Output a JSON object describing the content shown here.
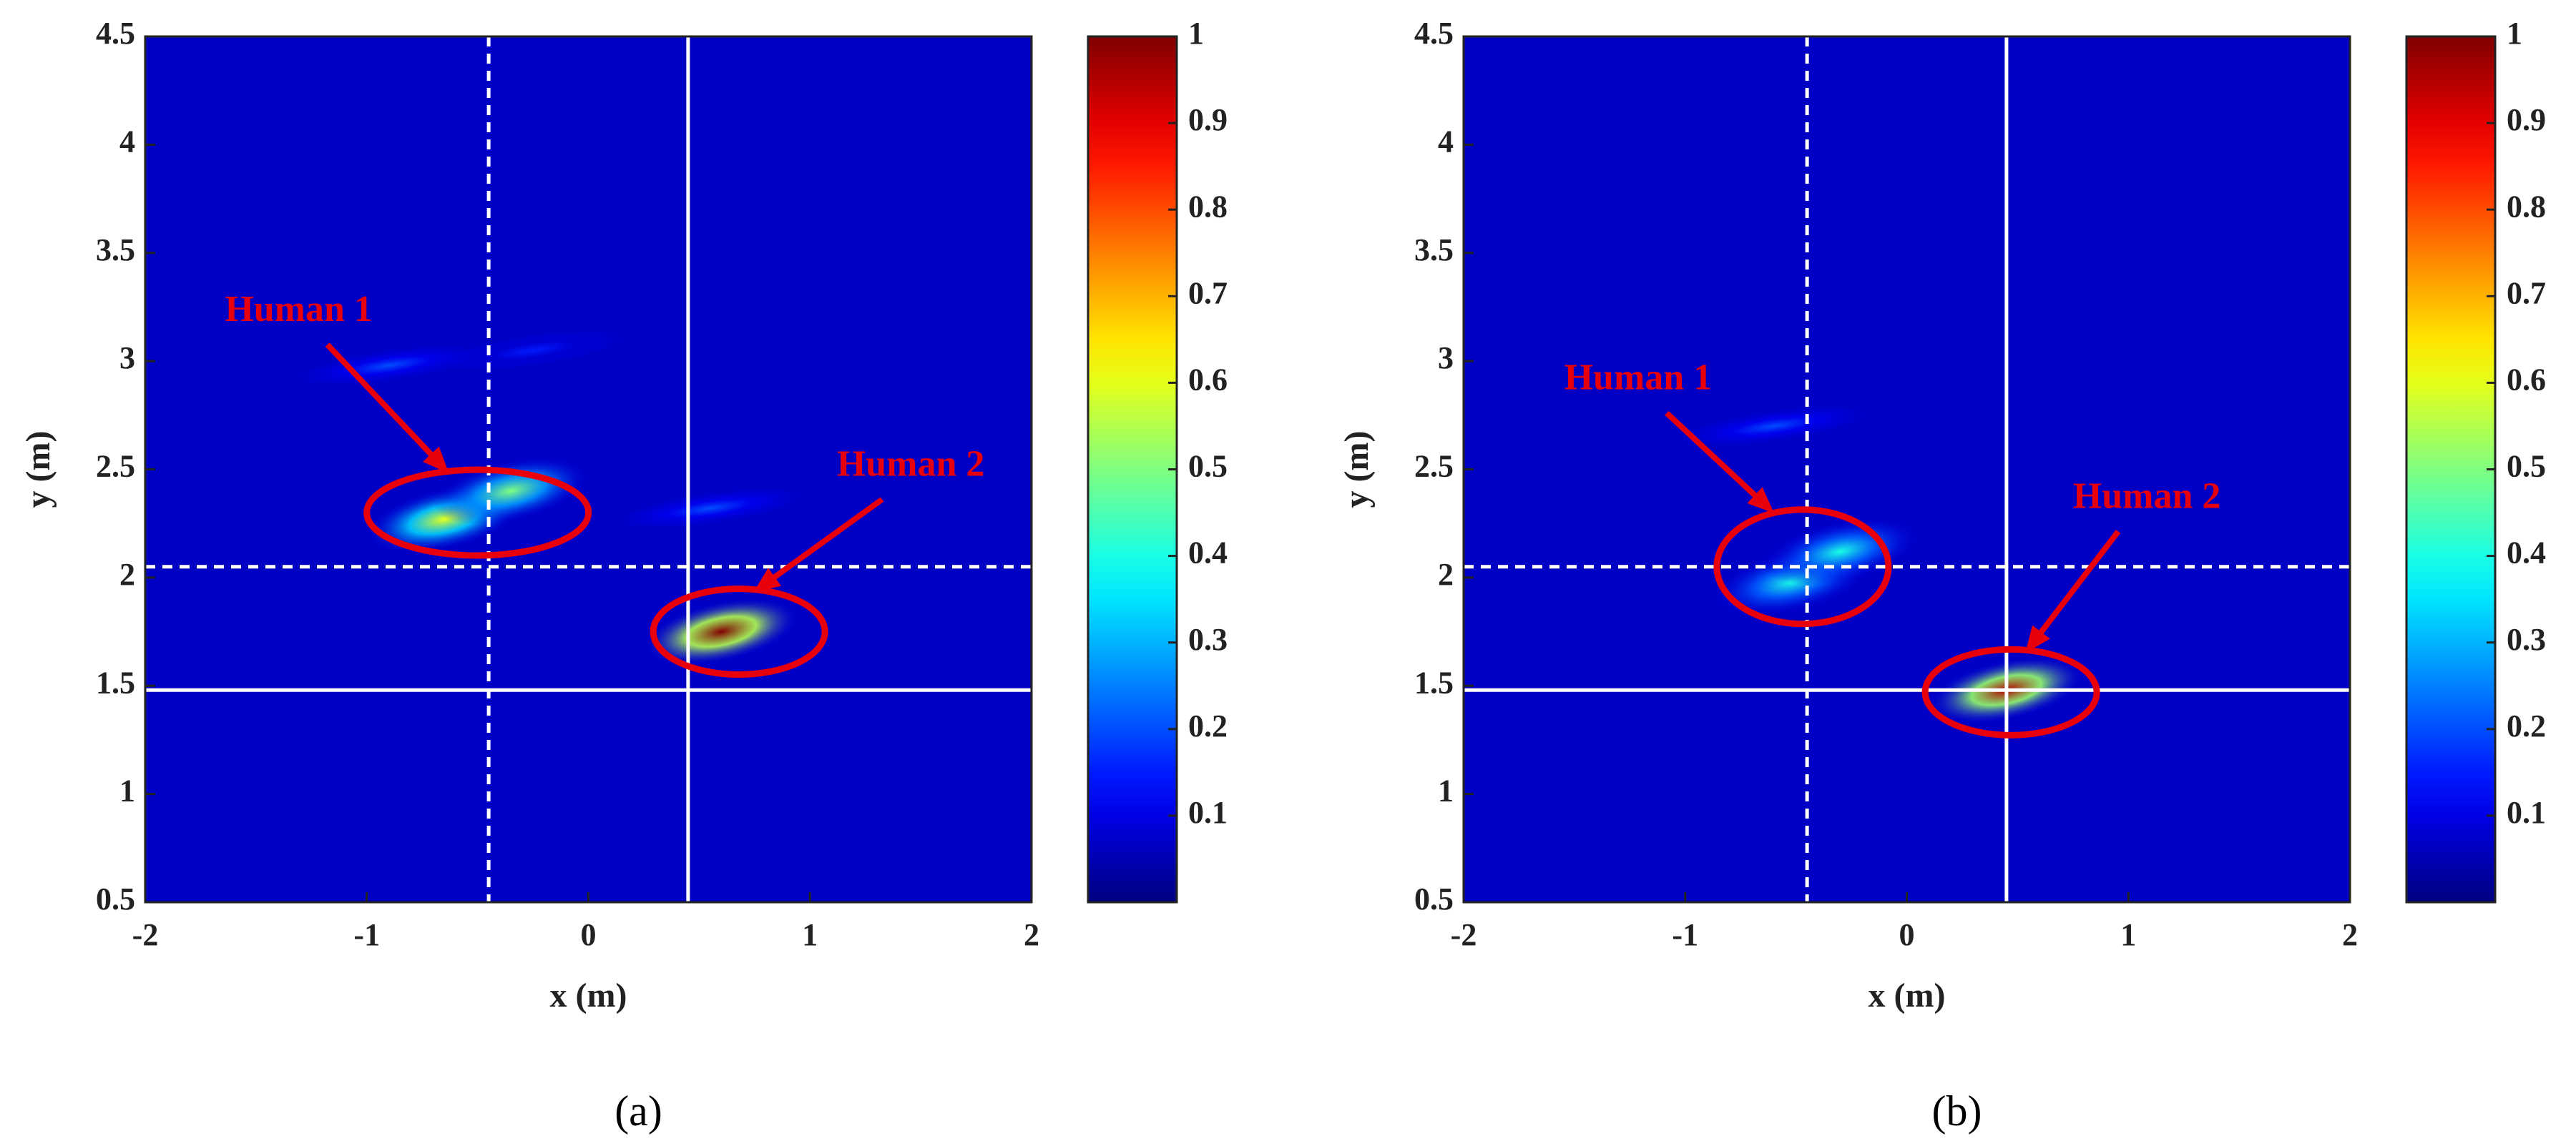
{
  "chart_data": [
    {
      "type": "heatmap",
      "caption": "(a)",
      "xlabel": "x (m)",
      "ylabel": "y (m)",
      "xlim": [
        -2,
        2
      ],
      "ylim": [
        0.5,
        4.5
      ],
      "xticks": [
        -2,
        -1,
        0,
        1,
        2
      ],
      "yticks": [
        0.5,
        1,
        1.5,
        2,
        2.5,
        3,
        3.5,
        4,
        4.5
      ],
      "clim": [
        0,
        1
      ],
      "cticks": [
        0.1,
        0.2,
        0.3,
        0.4,
        0.5,
        0.6,
        0.7,
        0.8,
        0.9,
        1
      ],
      "colormap": "jet",
      "background_value": 0.08,
      "hotspots": [
        {
          "x": -0.65,
          "y": 2.27,
          "value": 0.6
        },
        {
          "x": -0.35,
          "y": 2.4,
          "value": 0.5
        },
        {
          "x": -0.9,
          "y": 2.98,
          "value": 0.2
        },
        {
          "x": -0.25,
          "y": 3.05,
          "value": 0.15
        },
        {
          "x": 0.55,
          "y": 2.32,
          "value": 0.2
        },
        {
          "x": 0.6,
          "y": 1.75,
          "value": 1.0
        }
      ],
      "lines": [
        {
          "x": -0.45,
          "y": 2.05,
          "style": "dashed"
        },
        {
          "x": 0.45,
          "y": 1.48,
          "style": "solid"
        }
      ],
      "targets": [
        {
          "label": "Human 1",
          "x": -0.5,
          "y": 2.3
        },
        {
          "label": "Human 2",
          "x": 0.68,
          "y": 1.75
        }
      ]
    },
    {
      "type": "heatmap",
      "caption": "(b)",
      "xlabel": "x (m)",
      "ylabel": "y (m)",
      "xlim": [
        -2,
        2
      ],
      "ylim": [
        0.5,
        4.5
      ],
      "xticks": [
        -2,
        -1,
        0,
        1,
        2
      ],
      "yticks": [
        0.5,
        1,
        1.5,
        2,
        2.5,
        3,
        3.5,
        4,
        4.5
      ],
      "clim": [
        0,
        1
      ],
      "cticks": [
        0.1,
        0.2,
        0.3,
        0.4,
        0.5,
        0.6,
        0.7,
        0.8,
        0.9,
        1
      ],
      "colormap": "jet",
      "background_value": 0.08,
      "hotspots": [
        {
          "x": -0.52,
          "y": 1.98,
          "value": 0.4
        },
        {
          "x": -0.3,
          "y": 2.12,
          "value": 0.4
        },
        {
          "x": -0.6,
          "y": 2.7,
          "value": 0.2
        },
        {
          "x": 0.45,
          "y": 1.48,
          "value": 0.95
        }
      ],
      "lines": [
        {
          "x": -0.45,
          "y": 2.05,
          "style": "dashed"
        },
        {
          "x": 0.45,
          "y": 1.48,
          "style": "solid"
        }
      ],
      "targets": [
        {
          "label": "Human 1",
          "x": -0.47,
          "y": 2.05
        },
        {
          "label": "Human 2",
          "x": 0.47,
          "y": 1.47
        }
      ]
    }
  ]
}
